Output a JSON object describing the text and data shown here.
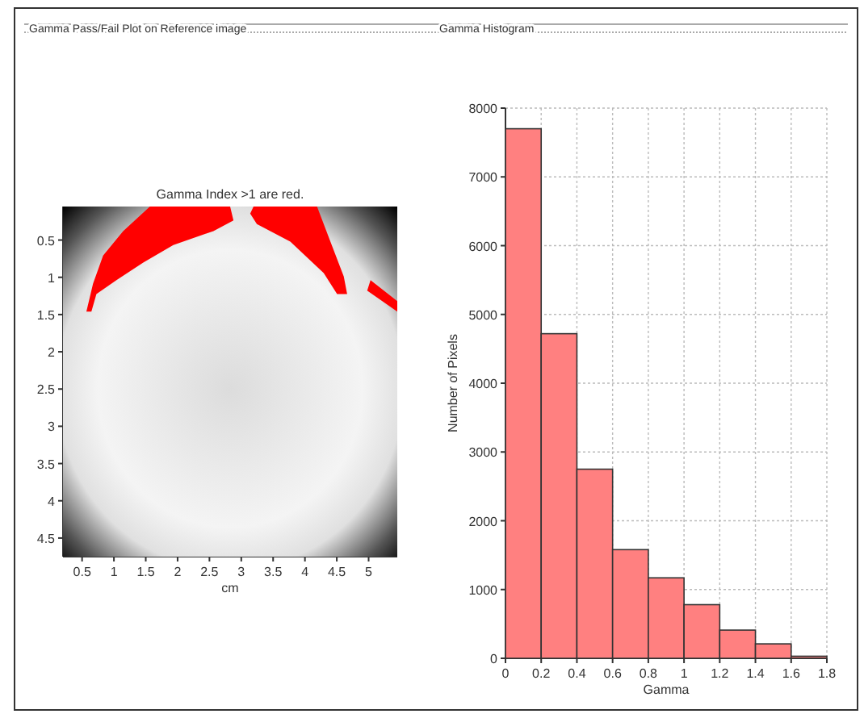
{
  "chart_data": [
    {
      "type": "scatter",
      "title": "Gamma Index >1 are red.",
      "xlabel": "cm",
      "xlim": [
        0.2,
        5.45
      ],
      "ylim": [
        4.75,
        0.05
      ],
      "xticks": [
        0.5,
        1,
        1.5,
        2,
        2.5,
        3,
        3.5,
        4,
        4.5,
        5
      ],
      "yticks": [
        0.5,
        1,
        1.5,
        2,
        2.5,
        3,
        3.5,
        4,
        4.5
      ],
      "annotations": [
        "Gamma Pass/Fail Plot on Reference image"
      ]
    },
    {
      "type": "histogram",
      "xlabel": "Gamma",
      "ylabel": "Number of Pixels",
      "bins": [
        0,
        0.2,
        0.4,
        0.6,
        0.8,
        1,
        1.2,
        1.4,
        1.6,
        1.8
      ],
      "values": [
        7700,
        4720,
        2750,
        1580,
        1170,
        780,
        410,
        210,
        30
      ],
      "color": "#ff8080",
      "xlim": [
        0,
        1.8
      ],
      "ylim": [
        0,
        8000
      ],
      "xticks": [
        0,
        0.2,
        0.4,
        0.6,
        0.8,
        1,
        1.2,
        1.4,
        1.6,
        1.8
      ],
      "yticks": [
        0,
        1000,
        2000,
        3000,
        4000,
        5000,
        6000,
        7000,
        8000
      ],
      "grid": true,
      "annotations": [
        "Gamma Histogram"
      ]
    }
  ]
}
